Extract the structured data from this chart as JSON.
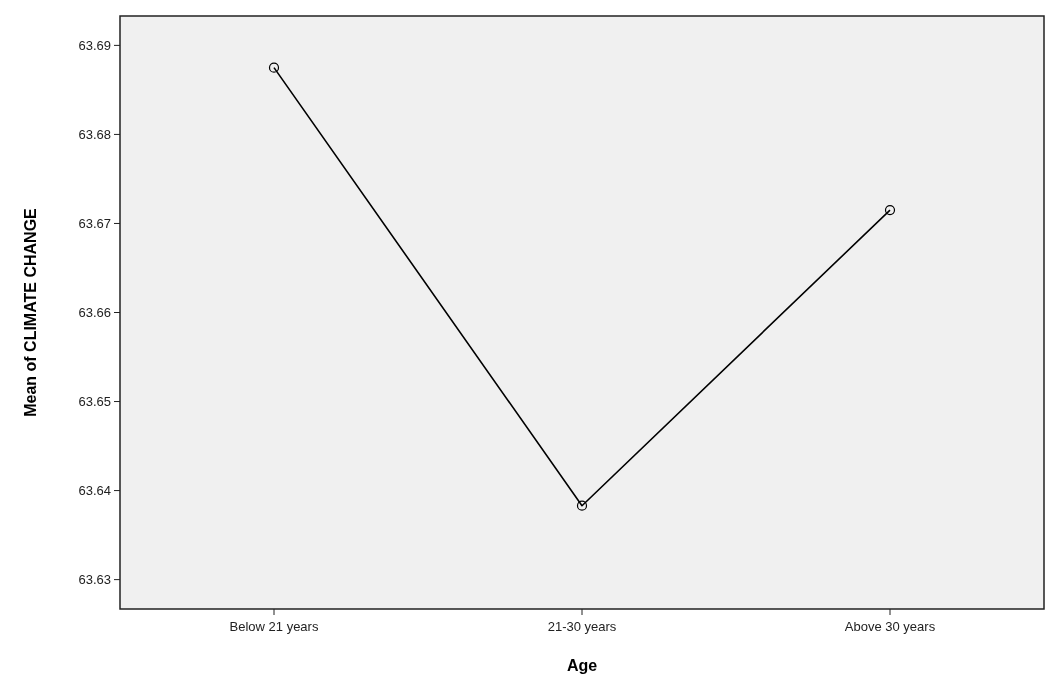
{
  "chart_data": {
    "type": "line",
    "xlabel": "Age",
    "ylabel": "Mean of CLIMATE CHANGE",
    "categories": [
      "Below 21 years",
      "21-30 years",
      "Above 30 years"
    ],
    "series": [
      {
        "color": "#000000",
        "values": [
          63.6875,
          63.6383,
          63.6715
        ]
      }
    ],
    "ylim": [
      63.6267,
      63.6933
    ],
    "yticks": [
      63.63,
      63.64,
      63.65,
      63.66,
      63.67,
      63.68,
      63.69
    ],
    "marker": "circle",
    "line_style": "solid",
    "grid": false
  }
}
